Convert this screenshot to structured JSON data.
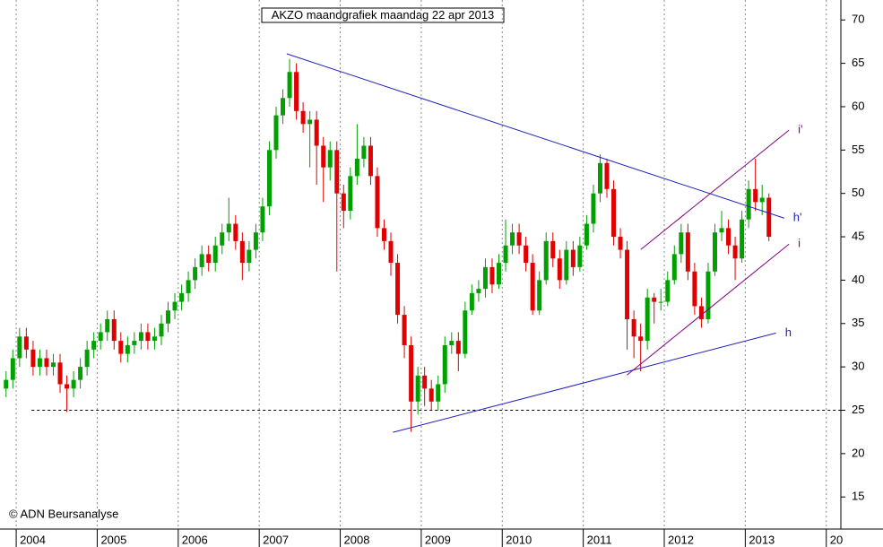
{
  "chart_data": {
    "type": "candlestick",
    "title": "AKZO maandgrafiek maandag 22 apr 2013",
    "credit": "© ADN Beursanalyse",
    "up_color": "#00a000",
    "down_color": "#e00000",
    "x": [
      "2003-11",
      "2003-12",
      "2004-01",
      "2004-02",
      "2004-03",
      "2004-04",
      "2004-05",
      "2004-06",
      "2004-07",
      "2004-08",
      "2004-09",
      "2004-10",
      "2004-11",
      "2004-12",
      "2005-01",
      "2005-02",
      "2005-03",
      "2005-04",
      "2005-05",
      "2005-06",
      "2005-07",
      "2005-08",
      "2005-09",
      "2005-10",
      "2005-11",
      "2005-12",
      "2006-01",
      "2006-02",
      "2006-03",
      "2006-04",
      "2006-05",
      "2006-06",
      "2006-07",
      "2006-08",
      "2006-09",
      "2006-10",
      "2006-11",
      "2006-12",
      "2007-01",
      "2007-02",
      "2007-03",
      "2007-04",
      "2007-05",
      "2007-06",
      "2007-07",
      "2007-08",
      "2007-09",
      "2007-10",
      "2007-11",
      "2007-12",
      "2008-01",
      "2008-02",
      "2008-03",
      "2008-04",
      "2008-05",
      "2008-06",
      "2008-07",
      "2008-08",
      "2008-09",
      "2008-10",
      "2008-11",
      "2008-12",
      "2009-01",
      "2009-02",
      "2009-03",
      "2009-04",
      "2009-05",
      "2009-06",
      "2009-07",
      "2009-08",
      "2009-09",
      "2009-10",
      "2009-11",
      "2009-12",
      "2010-01",
      "2010-02",
      "2010-03",
      "2010-04",
      "2010-05",
      "2010-06",
      "2010-07",
      "2010-08",
      "2010-09",
      "2010-10",
      "2010-11",
      "2010-12",
      "2011-01",
      "2011-02",
      "2011-03",
      "2011-04",
      "2011-05",
      "2011-06",
      "2011-07",
      "2011-08",
      "2011-09",
      "2011-10",
      "2011-11",
      "2011-12",
      "2012-01",
      "2012-02",
      "2012-03",
      "2012-04",
      "2012-05",
      "2012-06",
      "2012-07",
      "2012-08",
      "2012-09",
      "2012-10",
      "2012-11",
      "2012-12",
      "2013-01",
      "2013-02",
      "2013-03",
      "2013-04"
    ],
    "open": [
      27.5,
      28.5,
      31,
      33.5,
      32,
      30,
      31,
      30,
      30.5,
      28,
      27.5,
      28.5,
      30,
      32,
      33,
      34,
      35.5,
      33,
      31.5,
      32.5,
      33,
      34,
      33,
      33.5,
      35,
      36.5,
      37.5,
      38.5,
      40,
      41.5,
      43,
      42,
      44,
      45.5,
      46.5,
      44.5,
      42,
      43.5,
      45.5,
      48.5,
      55,
      59,
      61,
      64,
      59.5,
      58,
      58.5,
      55.5,
      53,
      55,
      50,
      48,
      52,
      54,
      55.5,
      52,
      46,
      44.5,
      42,
      36,
      32.5,
      26,
      29,
      27.5,
      26,
      28,
      32.5,
      33,
      31.5,
      36.5,
      38.5,
      39,
      41.5,
      39.5,
      42,
      44,
      45.5,
      44,
      42,
      36.5,
      40,
      44.5,
      42.5,
      40,
      43.5,
      41.5,
      44,
      46.5,
      50,
      53.5,
      50.5,
      45,
      43.5,
      35.5,
      33.5,
      33,
      38,
      37.5,
      37.5,
      40,
      43,
      45.5,
      41,
      37,
      35.5,
      41,
      45.5,
      46,
      44,
      42.5,
      47,
      50.5,
      49,
      49.5
    ],
    "high": [
      29.5,
      32,
      34.5,
      34.5,
      33,
      32,
      32,
      31.5,
      31.5,
      29,
      29.5,
      31,
      33,
      34,
      35,
      36.5,
      36.5,
      34,
      33.5,
      34,
      35,
      35,
      34.5,
      36,
      37.5,
      38.5,
      39.5,
      41,
      42.5,
      44,
      44,
      45,
      46.5,
      49.5,
      47.5,
      45.5,
      44.5,
      46.5,
      49.5,
      56,
      60,
      62,
      65.5,
      65,
      60.5,
      59.5,
      59.5,
      56.5,
      56,
      56,
      51,
      53,
      58,
      56.5,
      56.5,
      53,
      47,
      45.5,
      43,
      37,
      33.5,
      30,
      30,
      28.5,
      29,
      33.5,
      34,
      34,
      37.5,
      39.5,
      40,
      42.5,
      42.5,
      43,
      47,
      46.5,
      46.5,
      45,
      43,
      41,
      45.5,
      45.5,
      43.5,
      44.5,
      44.5,
      45,
      47.5,
      51,
      54.5,
      54,
      51.5,
      46,
      44.5,
      36.5,
      35,
      39,
      38.5,
      39,
      41,
      44,
      46.5,
      46.5,
      42,
      38,
      42,
      46.5,
      48,
      47,
      45,
      48,
      51.5,
      54,
      51,
      50
    ],
    "low": [
      26.5,
      27.5,
      30,
      31,
      29,
      29,
      29,
      29,
      27,
      24.8,
      26.5,
      27.5,
      29,
      31,
      32,
      33,
      32,
      30.5,
      30.5,
      31.5,
      32,
      32,
      32,
      32.5,
      34,
      35.5,
      36.5,
      37.5,
      39,
      40.5,
      41,
      41,
      43,
      44.5,
      43.5,
      40,
      41,
      42.5,
      44.5,
      47.5,
      54,
      58,
      60,
      58.5,
      57,
      53,
      51,
      49,
      51.5,
      41,
      46,
      47,
      51,
      53,
      51,
      45,
      43.5,
      40.5,
      35,
      31,
      22.5,
      24.5,
      25.5,
      25,
      25,
      27,
      31.5,
      29.5,
      31,
      36,
      37.5,
      38,
      38.5,
      39,
      41,
      43,
      43,
      41,
      36,
      36,
      39.5,
      41.5,
      39,
      39.5,
      40.5,
      41,
      43.5,
      45.5,
      49,
      49.5,
      44,
      42.5,
      32,
      31,
      29.5,
      32,
      35,
      36.5,
      37,
      39.5,
      42,
      40,
      36,
      34.5,
      35,
      40.5,
      44.5,
      43,
      40,
      42,
      46,
      48,
      47.5,
      44.5
    ],
    "close": [
      28.5,
      31,
      33.5,
      32,
      30,
      31,
      30,
      30.5,
      28,
      27.5,
      28.5,
      30,
      32,
      33,
      34,
      35.5,
      33,
      31.5,
      32.5,
      33,
      34,
      33,
      33.5,
      35,
      36.5,
      37.5,
      38.5,
      40,
      41.5,
      43,
      42,
      44,
      45.5,
      46.5,
      44.5,
      42,
      43.5,
      45.5,
      48.5,
      55,
      59,
      61,
      64,
      59.5,
      58,
      58.5,
      55.5,
      53,
      55,
      50,
      48,
      52,
      54,
      55.5,
      52,
      46,
      44.5,
      42,
      36,
      32.5,
      26,
      29,
      27.5,
      26,
      28,
      32.5,
      33,
      31.5,
      36.5,
      38.5,
      39,
      41.5,
      39.5,
      42,
      44,
      45.5,
      44,
      42,
      36.5,
      40,
      44.5,
      42.5,
      40,
      43.5,
      41.5,
      44,
      46.5,
      50,
      53.5,
      50.5,
      45,
      43.5,
      35.5,
      33.5,
      33,
      38,
      37.5,
      37.5,
      40,
      43,
      45.5,
      41,
      37,
      35.5,
      41,
      45.5,
      46,
      44,
      42.5,
      47,
      50.5,
      49,
      49.5,
      45
    ],
    "xlim": [
      2003.8,
      2014.18
    ],
    "xticks": [
      2004,
      2005,
      2006,
      2007,
      2008,
      2009,
      2010,
      2011,
      2012,
      2013,
      {
        "value": 2014,
        "label": "20"
      }
    ],
    "ylim": [
      11.3,
      72.3
    ],
    "yticks": [
      15,
      20,
      25,
      30,
      35,
      40,
      45,
      50,
      55,
      60,
      65,
      70
    ],
    "hline": {
      "y": 25,
      "x_start": 2004.19
    },
    "trend_lines": [
      {
        "label": "h'",
        "color": "#2020c0",
        "x": [
          2007.34,
          2013.48
        ],
        "y": [
          66.1,
          47.15
        ]
      },
      {
        "label": "h",
        "color": "#2020c0",
        "x": [
          2008.65,
          2013.38
        ],
        "y": [
          22.45,
          33.9
        ]
      },
      {
        "label": "i'",
        "color": "#800080",
        "x": [
          2011.71,
          2013.54
        ],
        "y": [
          43.53,
          57.3
        ]
      },
      {
        "label": "i",
        "color": "#800080",
        "x": [
          2011.54,
          2013.54
        ],
        "y": [
          29.06,
          44.15
        ]
      }
    ]
  }
}
